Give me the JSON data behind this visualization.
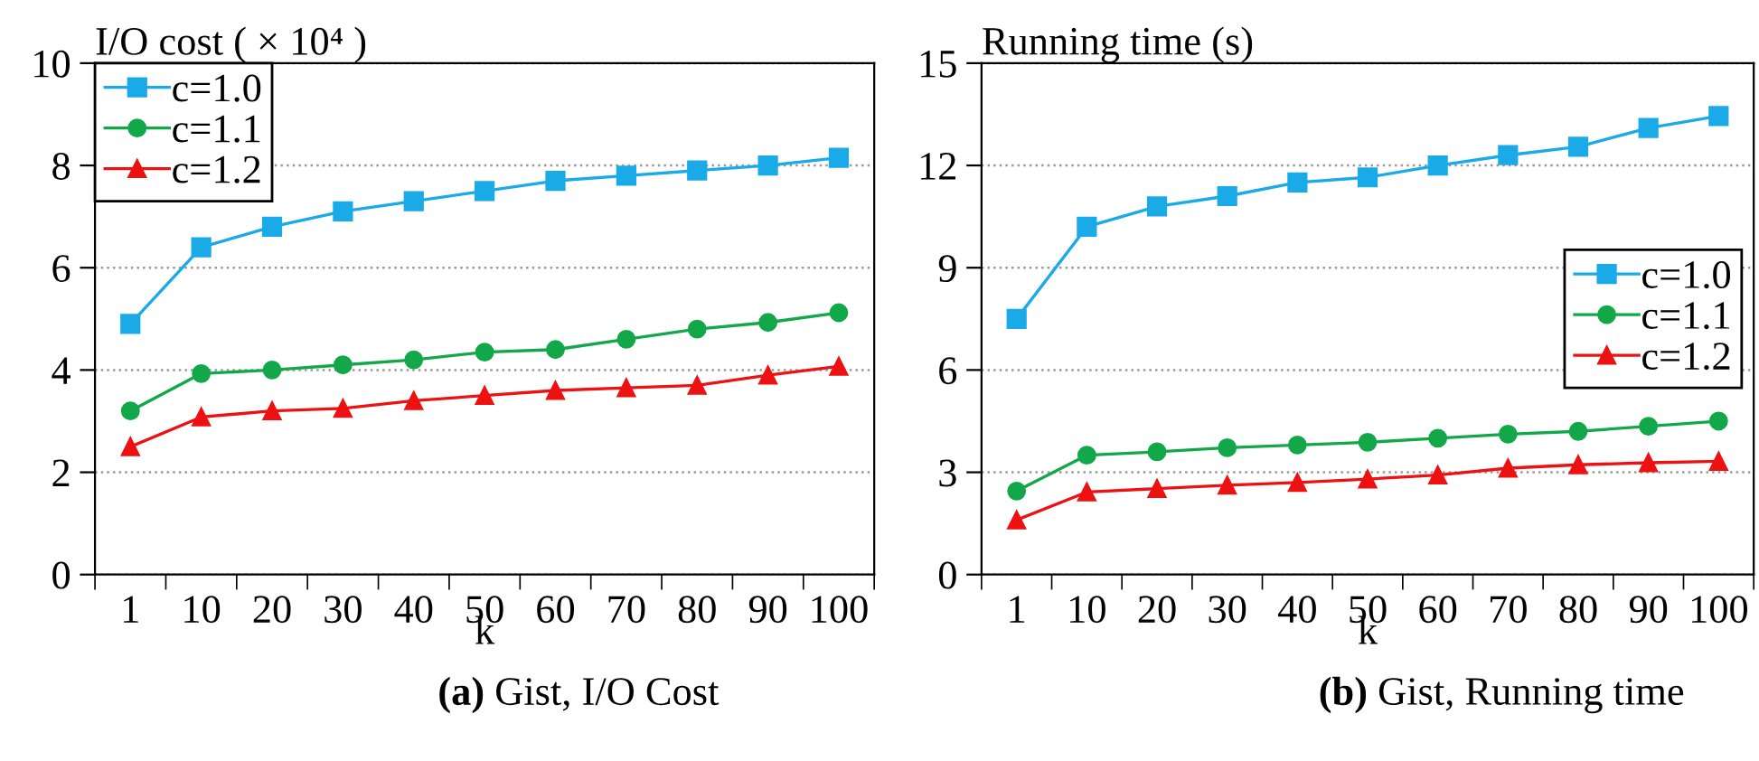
{
  "chart_data": [
    {
      "type": "line",
      "ylabel": "I/O cost ( × 10⁴ )",
      "xlabel": "k",
      "categories": [
        "1",
        "10",
        "20",
        "30",
        "40",
        "50",
        "60",
        "70",
        "80",
        "90",
        "100"
      ],
      "ylim": [
        0,
        10
      ],
      "yticks": [
        0,
        2,
        4,
        6,
        8,
        10
      ],
      "grid": "y",
      "legend": "top left",
      "annotations": [
        "(a) Gist, I/O Cost"
      ],
      "series": [
        {
          "name": "c=1.0",
          "color": "#1aaae8",
          "marker": "square",
          "values": [
            4.9,
            6.4,
            6.8,
            7.1,
            7.3,
            7.5,
            7.7,
            7.8,
            7.9,
            8.0,
            8.15
          ]
        },
        {
          "name": "c=1.1",
          "color": "#12a84a",
          "marker": "circle",
          "values": [
            3.2,
            3.93,
            4.0,
            4.1,
            4.2,
            4.35,
            4.4,
            4.6,
            4.8,
            4.93,
            5.12
          ]
        },
        {
          "name": "c=1.2",
          "color": "#ee1111",
          "marker": "triangle",
          "values": [
            2.5,
            3.08,
            3.2,
            3.25,
            3.4,
            3.5,
            3.6,
            3.65,
            3.7,
            3.9,
            4.07
          ]
        }
      ]
    },
    {
      "type": "line",
      "ylabel": "Running time (s)",
      "xlabel": "k",
      "categories": [
        "1",
        "10",
        "20",
        "30",
        "40",
        "50",
        "60",
        "70",
        "80",
        "90",
        "100"
      ],
      "ylim": [
        0,
        15
      ],
      "yticks": [
        0,
        3,
        6,
        9,
        12,
        15
      ],
      "grid": "y",
      "legend": "right",
      "annotations": [
        "(b) Gist, Running time"
      ],
      "series": [
        {
          "name": "c=1.0",
          "color": "#1aaae8",
          "marker": "square",
          "values": [
            7.5,
            10.2,
            10.8,
            11.1,
            11.5,
            11.65,
            12.0,
            12.3,
            12.55,
            13.1,
            13.45
          ]
        },
        {
          "name": "c=1.1",
          "color": "#12a84a",
          "marker": "circle",
          "values": [
            2.45,
            3.5,
            3.6,
            3.72,
            3.8,
            3.88,
            4.0,
            4.12,
            4.2,
            4.35,
            4.5
          ]
        },
        {
          "name": "c=1.2",
          "color": "#ee1111",
          "marker": "triangle",
          "values": [
            1.6,
            2.42,
            2.52,
            2.62,
            2.7,
            2.8,
            2.92,
            3.12,
            3.22,
            3.28,
            3.32
          ]
        }
      ]
    }
  ]
}
